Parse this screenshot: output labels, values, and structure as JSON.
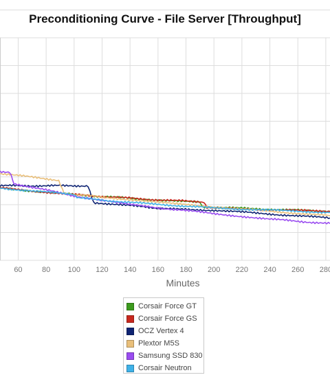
{
  "chart_data": {
    "type": "line",
    "title": "Preconditioning Curve - File Server [Throughput]",
    "xlabel": "Minutes",
    "ylabel": "",
    "xlim": [
      47,
      283
    ],
    "ylim": [
      0,
      10
    ],
    "x_ticks": [
      60,
      80,
      100,
      120,
      140,
      160,
      180,
      200,
      220,
      240,
      260,
      280
    ],
    "y_gridlines": [
      0,
      1,
      2,
      3,
      4,
      5,
      6,
      7,
      8,
      9
    ],
    "grid": true,
    "legend": "bottom-center",
    "series": [
      {
        "name": "Corsair Force GT",
        "color": "#3c9a1e",
        "points": [
          [
            47,
            3.25
          ],
          [
            100,
            2.95
          ],
          [
            150,
            2.75
          ],
          [
            190,
            2.6
          ],
          [
            192,
            2.4
          ],
          [
            283,
            2.2
          ]
        ]
      },
      {
        "name": "Corsair Force GS",
        "color": "#c8281e",
        "points": [
          [
            47,
            3.25
          ],
          [
            100,
            2.95
          ],
          [
            150,
            2.75
          ],
          [
            193,
            2.62
          ],
          [
            195,
            2.35
          ],
          [
            283,
            2.2
          ]
        ]
      },
      {
        "name": "OCZ Vertex 4",
        "color": "#0f2473",
        "points": [
          [
            47,
            3.35
          ],
          [
            110,
            3.35
          ],
          [
            114,
            2.6
          ],
          [
            150,
            2.4
          ],
          [
            170,
            2.3
          ],
          [
            200,
            2.25
          ],
          [
            283,
            1.9
          ]
        ]
      },
      {
        "name": "Plextor M5S",
        "color": "#e9bf7a",
        "points": [
          [
            47,
            3.9
          ],
          [
            89,
            3.6
          ],
          [
            93,
            3.0
          ],
          [
            120,
            2.85
          ],
          [
            160,
            2.6
          ],
          [
            200,
            2.4
          ],
          [
            283,
            2.0
          ]
        ]
      },
      {
        "name": "Samsung SSD 830",
        "color": "#9a4cf0",
        "points": [
          [
            47,
            4.0
          ],
          [
            54,
            3.95
          ],
          [
            57,
            3.45
          ],
          [
            100,
            2.9
          ],
          [
            140,
            2.5
          ],
          [
            200,
            2.1
          ],
          [
            240,
            1.85
          ],
          [
            283,
            1.65
          ]
        ]
      },
      {
        "name": "Corsair Neutron",
        "color": "#3fb2e8",
        "points": [
          [
            47,
            3.25
          ],
          [
            100,
            2.95
          ],
          [
            103,
            2.8
          ],
          [
            140,
            2.6
          ],
          [
            200,
            2.35
          ],
          [
            283,
            2.15
          ]
        ]
      }
    ]
  }
}
